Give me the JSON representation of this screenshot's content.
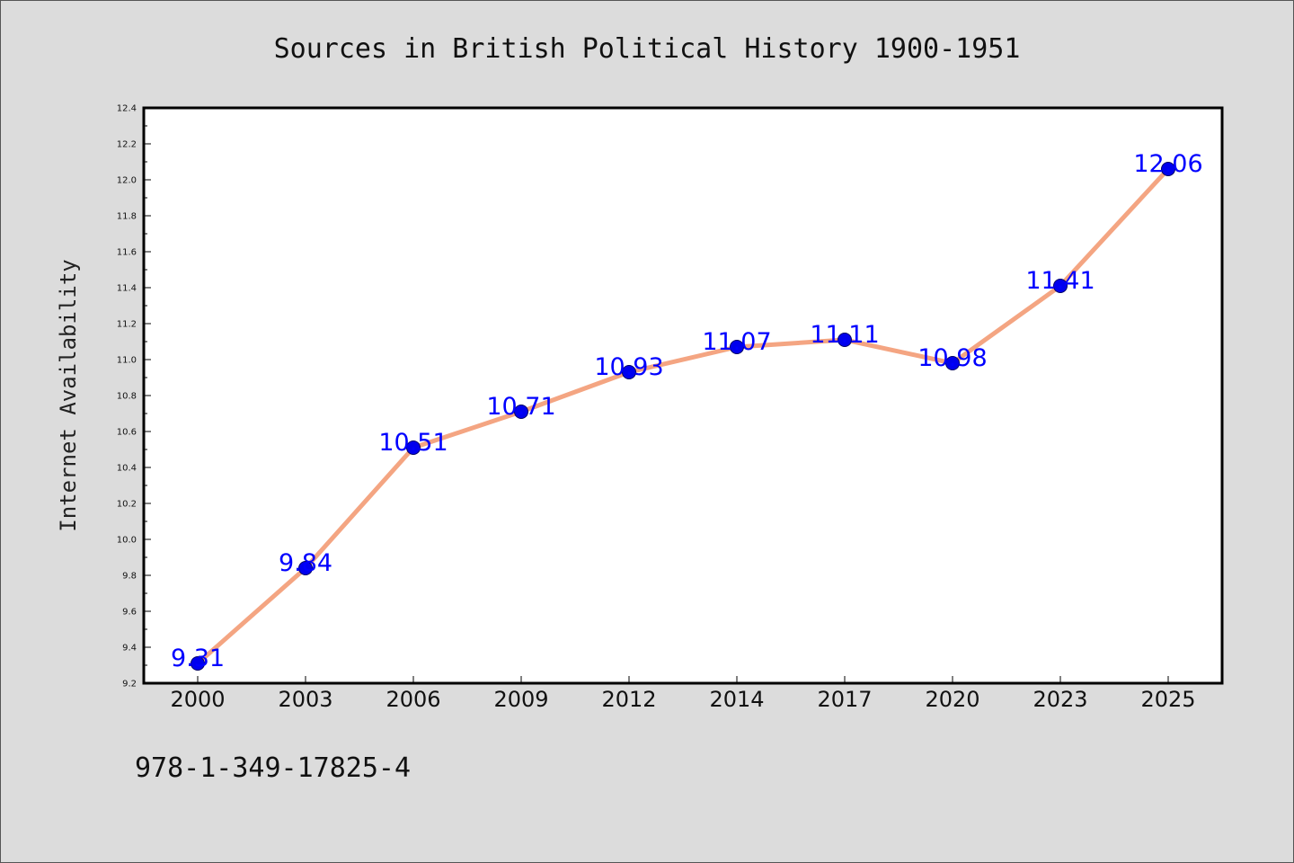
{
  "chart_data": {
    "type": "line",
    "title": "Sources in British Political History 1900-1951",
    "ylabel": "Internet Availability",
    "xlabel": "",
    "categories": [
      "2000",
      "2003",
      "2006",
      "2009",
      "2012",
      "2014",
      "2017",
      "2020",
      "2023",
      "2025"
    ],
    "series": [
      {
        "values": [
          9.31,
          9.84,
          10.51,
          10.71,
          10.93,
          11.07,
          11.11,
          10.98,
          11.41,
          12.06
        ],
        "data_labels": [
          "9.31",
          "9.84",
          "10.51",
          "10.71",
          "10.93",
          "11.07",
          "11.11",
          "10.98",
          "11.41",
          "12.06"
        ]
      }
    ],
    "ylim": [
      9.2,
      12.4
    ],
    "y_ticks": [
      "9.2",
      "9.4",
      "9.6",
      "9.8",
      "10.0",
      "10.2",
      "10.4",
      "10.6",
      "10.8",
      "11.0",
      "11.2",
      "11.4",
      "11.6",
      "11.8",
      "12.0",
      "12.2",
      "12.4"
    ],
    "grid": false,
    "legend": "none",
    "colors": {
      "line": "#f4a582",
      "marker": "#0000ee",
      "marker_edge": "#000066",
      "data_label": "#0000ff",
      "plot_background": "#ffffff",
      "page_background": "#dcdcdc"
    }
  },
  "footer": {
    "isbn": "978-1-349-17825-4"
  }
}
